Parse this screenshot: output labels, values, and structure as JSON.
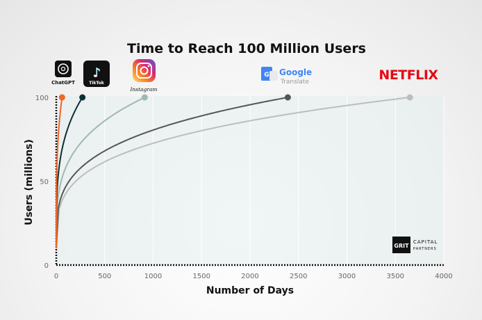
{
  "chart_data": {
    "type": "line",
    "title": "Time to Reach 100 Million Users",
    "xlabel": "Number of Days",
    "ylabel": "Users (millions)",
    "xlim": [
      0,
      4000
    ],
    "ylim": [
      0,
      100
    ],
    "x_ticks": [
      0,
      500,
      1000,
      1500,
      2000,
      2500,
      3000,
      3500,
      4000
    ],
    "y_ticks": [
      0,
      50,
      100
    ],
    "grid": "vertical",
    "series": [
      {
        "name": "ChatGPT",
        "days": 60,
        "color": "#f26522"
      },
      {
        "name": "TikTok",
        "days": 270,
        "color": "#0f2f33"
      },
      {
        "name": "Instagram",
        "days": 913,
        "color": "#9fb8b4"
      },
      {
        "name": "Google Translate",
        "days": 2390,
        "color": "#555555"
      },
      {
        "name": "Netflix",
        "days": 3650,
        "color": "#bdbdbd"
      }
    ]
  },
  "logos": {
    "chatgpt": "ChatGPT",
    "tiktok": "TikTok",
    "instagram": "Instagram",
    "google": "Google",
    "google_sub": "Translate",
    "netflix": "NETFLIX",
    "grit": "GRIT",
    "grit_sub1": "CAPITAL",
    "grit_sub2": "PARTNERS"
  }
}
